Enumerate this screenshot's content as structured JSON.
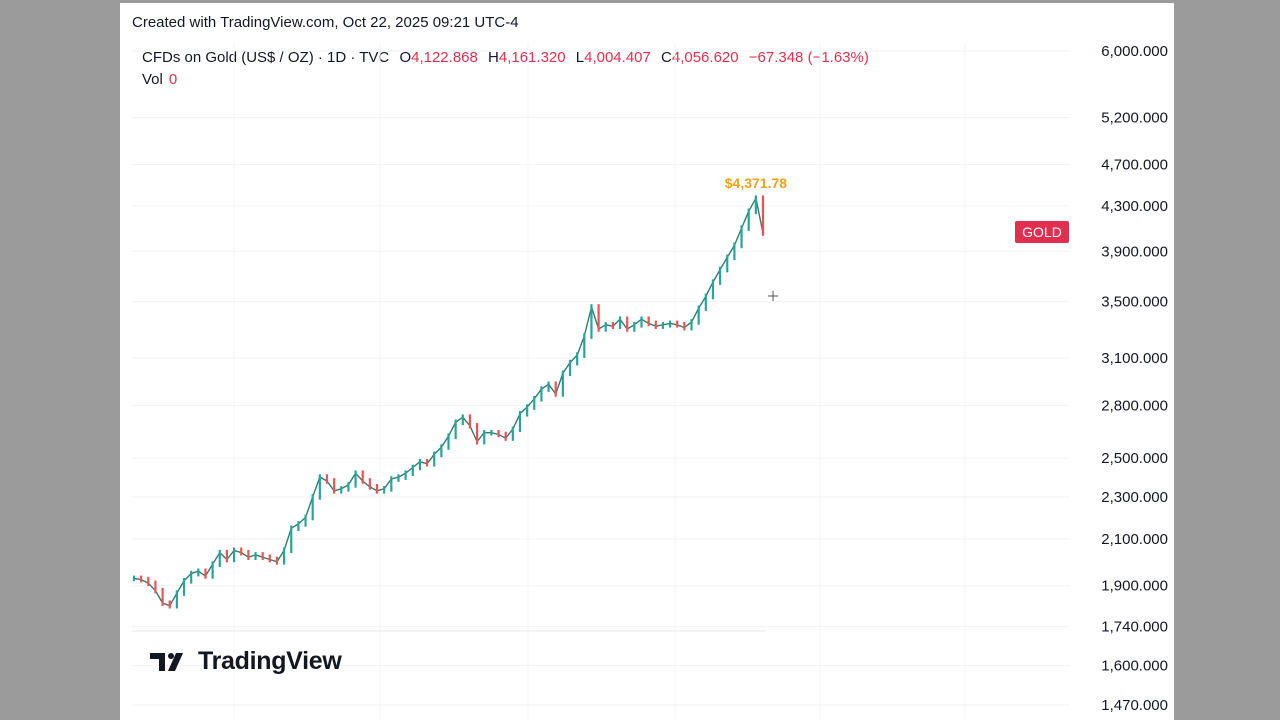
{
  "header": {
    "created": "Created with TradingView.com, Oct 22, 2025 09:21 UTC-4"
  },
  "legend": {
    "symbol": "CFDs on Gold (US$ / OZ) · 1D · TVC",
    "open_label": "O",
    "open": "4,122.868",
    "high_label": "H",
    "high": "4,161.320",
    "low_label": "L",
    "low": "4,004.407",
    "close_label": "C",
    "close": "4,056.620",
    "change": "−67.348 (−1.63%)",
    "vol_label": "Vol",
    "vol_value": "0"
  },
  "badge": {
    "text": "GOLD",
    "color": "#e0304d"
  },
  "peak": {
    "label": "$4,371.78",
    "color": "#f0a21c"
  },
  "watermark": {
    "text": "TradingView"
  },
  "colors": {
    "up": "#26a69a",
    "down": "#ef5350",
    "text": "#131722",
    "accent": "#e0304d"
  },
  "chart_data": {
    "type": "line",
    "title": "",
    "xlabel": "",
    "ylabel": "",
    "y_scale": "log",
    "ylim": [
      1400,
      6300
    ],
    "y_ticks": [
      6000,
      5200,
      4700,
      4300,
      3900,
      3500,
      3100,
      2800,
      2500,
      2300,
      2100,
      1900,
      1740,
      1600,
      1470
    ],
    "y_tick_labels": [
      "6,000.000",
      "5,200.000",
      "4,700.000",
      "4,300.000",
      "3,900.000",
      "3,500.000",
      "3,100.000",
      "2,800.000",
      "2,500.000",
      "2,300.000",
      "2,100.000",
      "1,900.000",
      "1,740.000",
      "1,600.000",
      "1,470.000"
    ],
    "grid": true,
    "legend_position": "top-left",
    "series": [
      {
        "values": [
          1930,
          1925,
          1910,
          1880,
          1830,
          1820,
          1870,
          1920,
          1950,
          1960,
          1940,
          1990,
          2040,
          2010,
          2050,
          2040,
          2020,
          2030,
          2020,
          2010,
          2000,
          2050,
          2150,
          2170,
          2200,
          2300,
          2400,
          2380,
          2330,
          2340,
          2360,
          2420,
          2380,
          2350,
          2330,
          2340,
          2390,
          2400,
          2420,
          2450,
          2480,
          2470,
          2520,
          2560,
          2620,
          2700,
          2730,
          2680,
          2590,
          2640,
          2640,
          2630,
          2610,
          2660,
          2750,
          2790,
          2840,
          2900,
          2930,
          2870,
          3000,
          3070,
          3120,
          3250,
          3460,
          3300,
          3330,
          3320,
          3370,
          3300,
          3330,
          3370,
          3340,
          3320,
          3330,
          3340,
          3330,
          3310,
          3350,
          3450,
          3540,
          3650,
          3750,
          3850,
          3950,
          4100,
          4250,
          4371.78,
          4056.62
        ],
        "color": "#26a69a"
      }
    ]
  }
}
